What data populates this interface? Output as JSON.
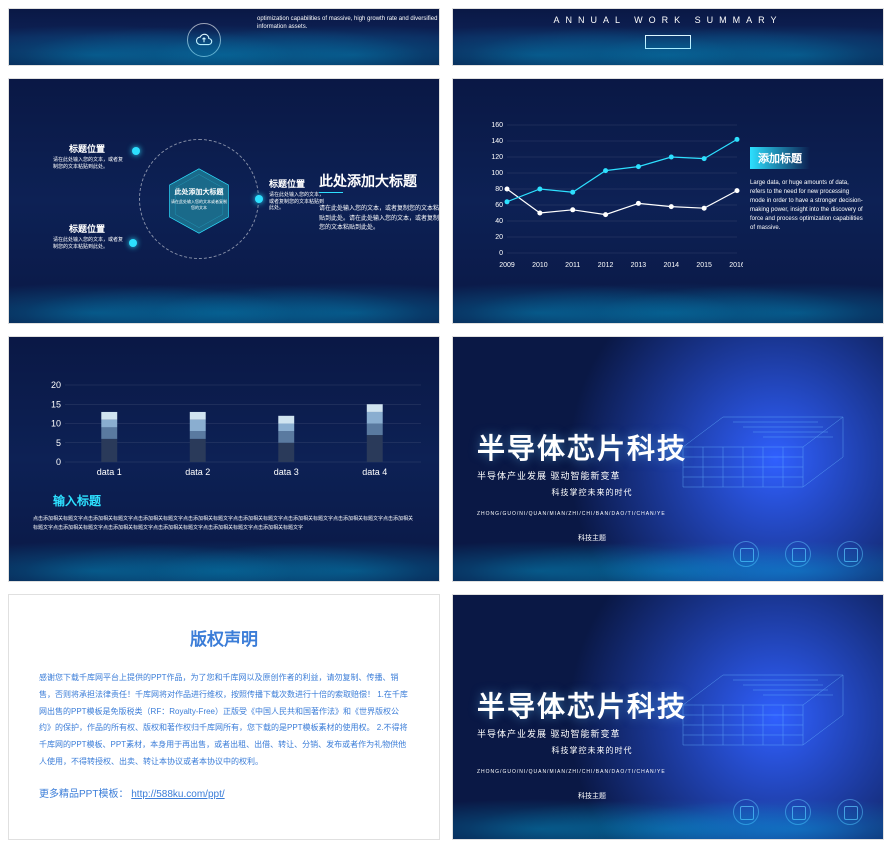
{
  "slide1": {
    "desc": "optimization capabilities of massive, high growth rate and diversified information assets."
  },
  "slide2": {
    "title": "ANNUAL WORK SUMMARY"
  },
  "slide3": {
    "hex_title": "此处添加大标题",
    "hex_sub": "请在此处输入您的文本或者复制您的文本",
    "labels": [
      {
        "title": "标题位置",
        "sub": "请在此处输入您的文本，或者复制您的文本粘贴到此处。"
      },
      {
        "title": "标题位置",
        "sub": "请在此处输入您的文本，或者复制您的文本粘贴到此处。"
      },
      {
        "title": "标题位置",
        "sub": "请在此处输入您的文本，或者复制您的文本粘贴到此处。"
      }
    ],
    "main_title": "此处添加大标题",
    "main_desc": "请在此处输入您的文本，或者复制您的文本粘贴到此处。请在此处输入您的文本，或者复制您的文本粘贴到此处。"
  },
  "slide4": {
    "chart": {
      "type": "line",
      "ylim": [
        0,
        160
      ],
      "ytick_step": 20,
      "x_labels": [
        "2009",
        "2010",
        "2011",
        "2012",
        "2013",
        "2014",
        "2015",
        "2016"
      ],
      "series": [
        {
          "color": "#ffffff",
          "points": [
            80,
            50,
            54,
            48,
            62,
            58,
            56,
            78
          ],
          "marker": "circle"
        },
        {
          "color": "#2de0ff",
          "points": [
            64,
            80,
            76,
            103,
            108,
            120,
            118,
            142
          ],
          "marker": "circle"
        }
      ],
      "grid_color": "rgba(255,255,255,0.15)",
      "axis_color": "rgba(255,255,255,0.6)"
    },
    "title": "添加标题",
    "desc": "Large data, or huge amounts of data, refers to the need for new processing mode in order to have a stronger decision-making power, insight into the discovery of force and process optimization capabilities of massive."
  },
  "slide5": {
    "chart": {
      "type": "stacked_bar",
      "ylim": [
        0,
        20
      ],
      "ytick_step": 5,
      "categories": [
        "data 1",
        "data 2",
        "data 3",
        "data 4"
      ],
      "segments": [
        {
          "color": "#2a3a5a",
          "values": [
            6,
            6,
            5,
            7
          ]
        },
        {
          "color": "#5a7aa0",
          "values": [
            3,
            2,
            3,
            3
          ]
        },
        {
          "color": "#8aaed0",
          "values": [
            2,
            3,
            2,
            3
          ]
        },
        {
          "color": "#d0e4f0",
          "values": [
            2,
            2,
            2,
            2
          ]
        }
      ],
      "bar_width": 0.18
    },
    "title": "输入标题",
    "desc": "点击添加相关标题文字点击添加相关标题文字点击添加相关标题文字点击添加相关标题文字点击添加相关标题文字点击添加相关标题文字点击添加相关标题文字点击添加相关标题文字点击添加相关标题文字点击添加相关标题文字点击添加相关标题文字点击添加相关标题文字点击添加相关标题文字"
  },
  "slide6": {
    "title": "半导体芯片科技",
    "sub1": "半导体产业发展 驱动智能新变革",
    "sub2": "科技掌控未来的时代",
    "pinyin": "ZHONG/GUO/NI/QUAN/MIAN/ZHI/CHI/BAN/DAO/TI/CHAN/YE",
    "tag": "科技主题"
  },
  "slide7": {
    "title": "版权声明",
    "body": "感谢您下载千库网平台上提供的PPT作品，为了您和千库网以及原创作者的利益，请勿复制、传播、销售，否则将承担法律责任！千库网将对作品进行维权，按照传播下载次数进行十倍的索取赔偿！\n1.在千库网出售的PPT模板是免版税类（RF：Royalty-Free）正版受《中国人民共和国著作法》和《世界版权公约》的保护，作品的所有权、版权和著作权归千库网所有，您下载的是PPT模板素材的使用权。\n2.不得将千库网的PPT模板、PPT素材，本身用于再出售，或者出租、出借、转让、分销、发布或者作为礼物供他人使用，不得转授权、出卖、转让本协议或者本协议中的权利。",
    "link_label": "更多精品PPT模板：",
    "link_url": "http://588ku.com/ppt/"
  }
}
